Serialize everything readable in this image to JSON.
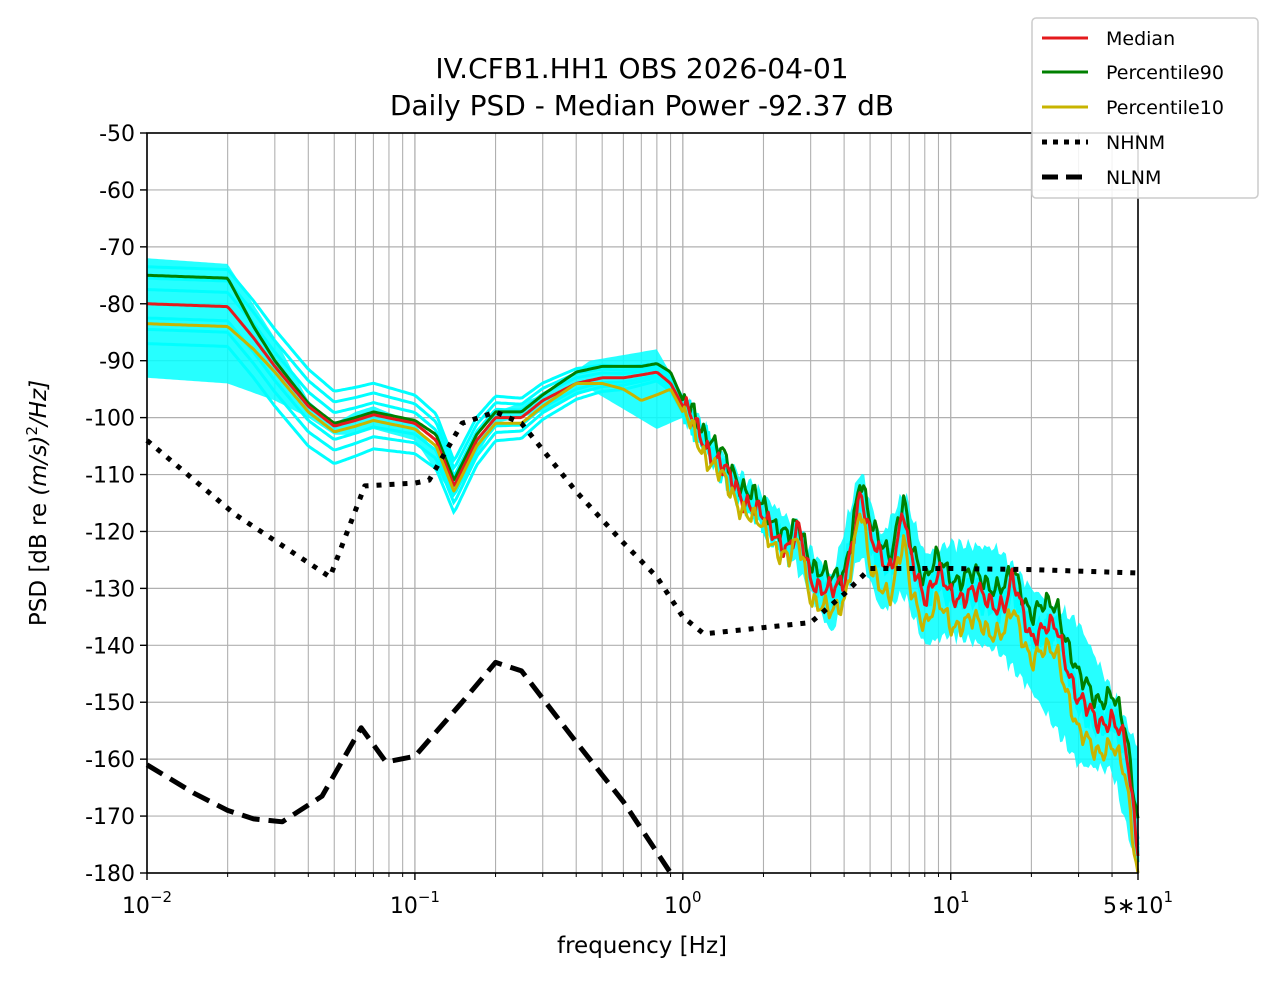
{
  "chart_data": {
    "type": "line",
    "title": "IV.CFB1.HH1 OBS 2026-04-01",
    "subtitle": "Daily PSD - Median Power -92.37 dB",
    "xlabel": "frequency [Hz]",
    "ylabel_main": "PSD [dB re ",
    "ylabel_math": "(m/s)",
    "ylabel_exp": "2",
    "ylabel_tail": "/Hz]",
    "x_scale": "log",
    "xlim": [
      0.01,
      50
    ],
    "ylim": [
      -180,
      -50
    ],
    "grid": true,
    "legend_placement": "top-right",
    "x_ticks": [
      {
        "value": 0.01,
        "base": "10",
        "exp": "−2"
      },
      {
        "value": 0.1,
        "base": "10",
        "exp": "−1"
      },
      {
        "value": 1,
        "base": "10",
        "exp": "0"
      },
      {
        "value": 10,
        "base": "10",
        "exp": "1"
      },
      {
        "value": 50,
        "base": "5∗10",
        "exp": "1"
      }
    ],
    "y_ticks": [
      "-50",
      "-60",
      "-70",
      "-80",
      "-90",
      "-100",
      "-110",
      "-120",
      "-130",
      "-140",
      "-150",
      "-160",
      "-170",
      "-180"
    ],
    "colors": {
      "median": "#e41a1c",
      "p90": "#008000",
      "p10": "#c8b400",
      "hourly": "#00ffff",
      "model": "#000000",
      "grid": "#b0b0b0"
    },
    "hourly_envelope": {
      "note_free": true,
      "x": [
        0.01,
        0.02,
        0.03,
        0.04,
        0.05,
        0.06,
        0.07,
        0.1,
        0.14,
        0.2,
        0.3,
        0.45,
        0.8,
        1.0,
        1.5,
        2.5,
        3.6,
        4.6,
        5.5,
        6.7,
        8,
        10,
        15,
        20,
        30,
        40,
        50
      ],
      "upper": [
        -72,
        -73,
        -86,
        -97,
        -101,
        -99,
        -98,
        -101,
        -111,
        -99,
        -96,
        -90,
        -88,
        -96,
        -108,
        -118,
        -128,
        -109,
        -121,
        -113,
        -124,
        -122,
        -123,
        -130,
        -136,
        -148,
        -158
      ],
      "lower": [
        -93,
        -94,
        -97,
        -100,
        -103,
        -103,
        -102,
        -104,
        -114,
        -101,
        -99,
        -95,
        -102,
        -100,
        -112,
        -124,
        -138,
        -124,
        -134,
        -131,
        -140,
        -138,
        -141,
        -148,
        -161,
        -162,
        -180
      ]
    },
    "hourly_offsets": [
      6.5,
      4.5,
      2.5,
      -2.5,
      -4.5,
      -7
    ],
    "series": [
      {
        "name": "Median",
        "x": [
          0.01,
          0.02,
          0.025,
          0.03,
          0.04,
          0.05,
          0.06,
          0.07,
          0.1,
          0.12,
          0.14,
          0.17,
          0.2,
          0.25,
          0.3,
          0.4,
          0.5,
          0.6,
          0.7,
          0.8,
          0.9,
          1.0,
          1.2,
          1.5,
          2.0,
          2.5,
          2.7,
          3.0,
          3.6,
          4.0,
          4.6,
          5.0,
          5.5,
          6.0,
          6.7,
          7.0,
          8.0,
          9.0,
          10,
          12,
          14,
          16,
          17,
          20,
          25,
          30,
          35,
          40,
          45,
          50
        ],
        "y": [
          -80,
          -80.5,
          -86,
          -91,
          -98,
          -101.5,
          -100.5,
          -99.5,
          -101,
          -104,
          -112,
          -104,
          -100,
          -100,
          -97,
          -94,
          -93,
          -93,
          -92.5,
          -92,
          -94,
          -98,
          -104,
          -111,
          -118,
          -123,
          -120,
          -128,
          -131,
          -129,
          -113,
          -122,
          -124,
          -126,
          -117,
          -124,
          -131,
          -128,
          -131,
          -131,
          -132,
          -133,
          -129,
          -138,
          -137,
          -150,
          -153,
          -153,
          -158,
          -175
        ]
      },
      {
        "name": "Percentile90",
        "x": [
          0.01,
          0.02,
          0.025,
          0.03,
          0.04,
          0.05,
          0.06,
          0.07,
          0.1,
          0.12,
          0.14,
          0.17,
          0.2,
          0.25,
          0.3,
          0.4,
          0.5,
          0.6,
          0.7,
          0.8,
          0.9,
          1.0,
          1.2,
          1.5,
          2.0,
          2.5,
          2.7,
          3.0,
          3.6,
          4.0,
          4.6,
          5.0,
          5.5,
          6.0,
          6.7,
          7.0,
          8.0,
          9.0,
          10,
          12,
          14,
          16,
          17,
          20,
          25,
          30,
          35,
          40,
          45,
          50
        ],
        "y": [
          -75,
          -75.5,
          -84,
          -90,
          -97.5,
          -101,
          -100,
          -99,
          -100.5,
          -103,
          -111,
          -103,
          -99,
          -99,
          -96,
          -92,
          -91,
          -91,
          -91,
          -90.5,
          -92,
          -97,
          -102,
          -109,
          -116,
          -121,
          -119,
          -125,
          -129,
          -127,
          -111,
          -119,
          -121,
          -124,
          -115,
          -121,
          -128,
          -125,
          -128,
          -128,
          -129,
          -130,
          -127,
          -134,
          -133,
          -146,
          -149,
          -149,
          -155,
          -170
        ]
      },
      {
        "name": "Percentile10",
        "x": [
          0.01,
          0.02,
          0.025,
          0.03,
          0.04,
          0.05,
          0.06,
          0.07,
          0.1,
          0.12,
          0.14,
          0.17,
          0.2,
          0.25,
          0.3,
          0.4,
          0.5,
          0.6,
          0.7,
          0.8,
          0.9,
          1.0,
          1.2,
          1.5,
          2.0,
          2.5,
          2.7,
          3.0,
          3.6,
          4.0,
          4.6,
          5.0,
          5.5,
          6.0,
          6.7,
          7.0,
          8.0,
          9.0,
          10,
          12,
          14,
          16,
          17,
          20,
          25,
          30,
          35,
          40,
          45,
          50
        ],
        "y": [
          -83.5,
          -84,
          -88,
          -92,
          -99,
          -102.5,
          -101.5,
          -100.5,
          -102,
          -105,
          -113,
          -105,
          -101,
          -101,
          -98,
          -94,
          -94,
          -95,
          -97,
          -96,
          -95,
          -99,
          -106,
          -113,
          -120,
          -125,
          -122,
          -131,
          -135,
          -132,
          -116,
          -127,
          -129,
          -131,
          -122,
          -129,
          -136,
          -133,
          -136,
          -136,
          -137,
          -138,
          -134,
          -142,
          -141,
          -156,
          -158,
          -158,
          -163,
          -180
        ]
      },
      {
        "name": "NHNM",
        "x": [
          0.01,
          0.0213,
          0.0482,
          0.065,
          0.1,
          0.113,
          0.15,
          0.2,
          0.25,
          0.4,
          0.6,
          0.8,
          1.0,
          1.2,
          3.0,
          4.0,
          5.0,
          10,
          20,
          50
        ],
        "y": [
          -104,
          -117,
          -128,
          -112,
          -111.5,
          -111,
          -101,
          -99,
          -101,
          -113,
          -122,
          -128,
          -135,
          -138,
          -136,
          -131,
          -126.5,
          -126.5,
          -126.7,
          -127.3
        ]
      },
      {
        "name": "NLNM",
        "x": [
          0.01,
          0.015,
          0.02,
          0.025,
          0.032,
          0.045,
          0.063,
          0.078,
          0.1,
          0.15,
          0.2,
          0.25,
          0.4,
          0.6,
          0.9
        ],
        "y": [
          -161,
          -166,
          -169,
          -170.5,
          -171,
          -166.5,
          -154.5,
          -160.5,
          -159.5,
          -150,
          -143,
          -144.5,
          -157,
          -167.5,
          -180
        ]
      }
    ],
    "legend": [
      "Median",
      "Percentile90",
      "Percentile10",
      "NHNM",
      "NLNM"
    ]
  }
}
